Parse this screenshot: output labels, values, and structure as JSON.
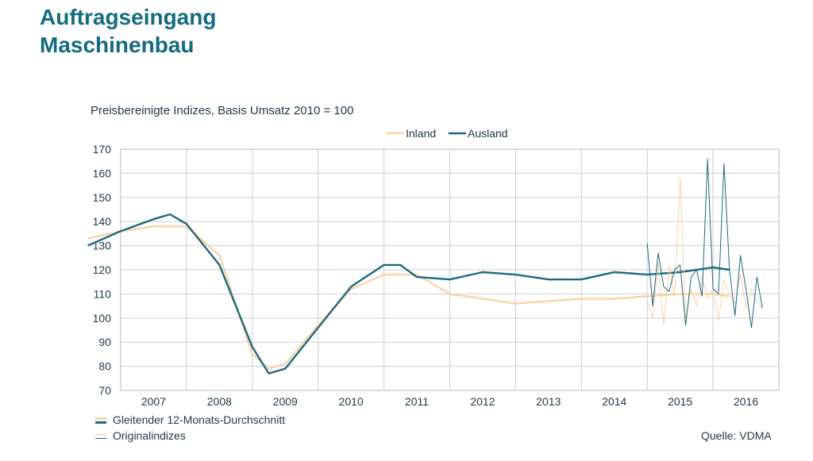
{
  "page": {
    "title_line1": "Auftragseingang",
    "title_line2": "Maschinenbau",
    "subtitle": "Preisbereinigte Indizes, Basis Umsatz 2010 = 100",
    "source": "Quelle: VDMA",
    "legend_bottom": {
      "smoothed": "Gleitender 12-Monats-Durchschnitt",
      "original": "Originalindizes"
    }
  },
  "colors": {
    "inland": "#F9D3A8",
    "ausland": "#1C6A80",
    "title": "#136B7F",
    "grid": "#c8c8c8"
  },
  "chart_data": {
    "type": "line",
    "title": "Preisbereinigte Indizes, Basis Umsatz 2010 = 100",
    "xlabel": "",
    "ylabel": "",
    "ylim": [
      70,
      170
    ],
    "yticks": [
      "70",
      "80",
      "90",
      "100",
      "110",
      "120",
      "130",
      "140",
      "150",
      "160",
      "170"
    ],
    "categories": [
      "2007",
      "2008",
      "2009",
      "2010",
      "2011",
      "2012",
      "2013",
      "2014",
      "2015",
      "2016"
    ],
    "grid": true,
    "legend": "top-center",
    "series": [
      {
        "name": "Inland",
        "color": "#F9D3A8",
        "kind": "12-month moving average",
        "points": [
          [
            "2006-07",
            133
          ],
          [
            "2007-01",
            136
          ],
          [
            "2007-07",
            138
          ],
          [
            "2008-01",
            138
          ],
          [
            "2008-07",
            126
          ],
          [
            "2009-01",
            85
          ],
          [
            "2009-04",
            79
          ],
          [
            "2009-07",
            81
          ],
          [
            "2010-01",
            97
          ],
          [
            "2010-07",
            112
          ],
          [
            "2011-01",
            118
          ],
          [
            "2011-07",
            118
          ],
          [
            "2012-01",
            110
          ],
          [
            "2012-07",
            108
          ],
          [
            "2013-01",
            106
          ],
          [
            "2013-07",
            107
          ],
          [
            "2014-01",
            108
          ],
          [
            "2014-07",
            108
          ],
          [
            "2015-01",
            109
          ],
          [
            "2015-07",
            110
          ],
          [
            "2016-01",
            110
          ],
          [
            "2016-04",
            109
          ]
        ]
      },
      {
        "name": "Ausland",
        "color": "#1C6A80",
        "kind": "12-month moving average",
        "points": [
          [
            "2006-07",
            130
          ],
          [
            "2007-01",
            136
          ],
          [
            "2007-07",
            141
          ],
          [
            "2007-10",
            143
          ],
          [
            "2008-01",
            139
          ],
          [
            "2008-07",
            122
          ],
          [
            "2009-01",
            88
          ],
          [
            "2009-04",
            77
          ],
          [
            "2009-07",
            79
          ],
          [
            "2010-01",
            96
          ],
          [
            "2010-07",
            113
          ],
          [
            "2011-01",
            122
          ],
          [
            "2011-04",
            122
          ],
          [
            "2011-07",
            117
          ],
          [
            "2012-01",
            116
          ],
          [
            "2012-07",
            119
          ],
          [
            "2013-01",
            118
          ],
          [
            "2013-07",
            116
          ],
          [
            "2014-01",
            116
          ],
          [
            "2014-07",
            119
          ],
          [
            "2015-01",
            118
          ],
          [
            "2015-07",
            119
          ],
          [
            "2016-01",
            121
          ],
          [
            "2016-04",
            120
          ]
        ]
      },
      {
        "name": "Inland",
        "color": "#F9D3A8",
        "kind": "original index",
        "points": [
          [
            "2015-01",
            107
          ],
          [
            "2015-02",
            100
          ],
          [
            "2015-03",
            123
          ],
          [
            "2015-04",
            97
          ],
          [
            "2015-05",
            122
          ],
          [
            "2015-06",
            109
          ],
          [
            "2015-07",
            158
          ],
          [
            "2015-08",
            100
          ],
          [
            "2015-09",
            112
          ],
          [
            "2015-10",
            105
          ],
          [
            "2015-11",
            117
          ],
          [
            "2015-12",
            108
          ],
          [
            "2016-01",
            112
          ],
          [
            "2016-02",
            99
          ],
          [
            "2016-03",
            116
          ],
          [
            "2016-04",
            110
          ],
          [
            "2016-05",
            106
          ],
          [
            "2016-06",
            118
          ],
          [
            "2016-07",
            104
          ],
          [
            "2016-08",
            112
          ],
          [
            "2016-09",
            107
          ],
          [
            "2016-10",
            104
          ]
        ]
      },
      {
        "name": "Ausland",
        "color": "#1C6A80",
        "kind": "original index",
        "points": [
          [
            "2015-01",
            131
          ],
          [
            "2015-02",
            105
          ],
          [
            "2015-03",
            127
          ],
          [
            "2015-04",
            113
          ],
          [
            "2015-05",
            111
          ],
          [
            "2015-06",
            120
          ],
          [
            "2015-07",
            122
          ],
          [
            "2015-08",
            97
          ],
          [
            "2015-09",
            117
          ],
          [
            "2015-10",
            120
          ],
          [
            "2015-11",
            109
          ],
          [
            "2015-12",
            166
          ],
          [
            "2016-01",
            112
          ],
          [
            "2016-02",
            110
          ],
          [
            "2016-03",
            164
          ],
          [
            "2016-04",
            120
          ],
          [
            "2016-05",
            101
          ],
          [
            "2016-06",
            126
          ],
          [
            "2016-07",
            112
          ],
          [
            "2016-08",
            96
          ],
          [
            "2016-09",
            117
          ],
          [
            "2016-10",
            104
          ]
        ]
      }
    ]
  }
}
